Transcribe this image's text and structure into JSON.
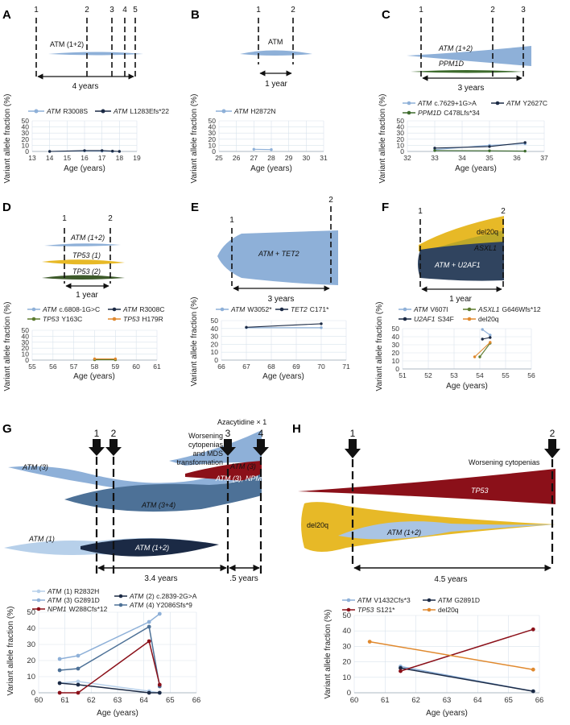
{
  "colors": {
    "atm": "#8eb0d8",
    "atm_dark": "#1b2a45",
    "atm_mid": "#4d7197",
    "atm_light": "#b7d0ea",
    "tp53": "#8b1019",
    "tp53_yellow": "#e7b927",
    "tp53_green": "#3d5a2a",
    "asxl1": "#bda829",
    "del20q": "#e0892e",
    "ppm1d": "#3d6b2c",
    "grid": "#d9e3ec"
  },
  "chart_data": [
    {
      "id": "A",
      "type": "line",
      "xlabel": "Age (years)",
      "ylabel": "Variant allele fraction (%)",
      "xlim": [
        13,
        19
      ],
      "ylim": [
        0,
        50
      ],
      "xticks": [
        "13",
        "14",
        "15",
        "16",
        "17",
        "18",
        "19"
      ],
      "yticks": [
        "0",
        "10",
        "20",
        "30",
        "40",
        "50"
      ],
      "series": [
        {
          "name": "ATM",
          "variant": "R3008S",
          "color": "#8eb0d8",
          "x": [
            14,
            16,
            17,
            17.6,
            18
          ],
          "y": [
            0,
            1,
            0.5,
            0,
            0
          ]
        },
        {
          "name": "ATM",
          "variant": "L1283Efs*22",
          "color": "#1b2a45",
          "x": [
            14,
            16,
            17,
            17.6,
            18
          ],
          "y": [
            0,
            1.5,
            1.5,
            0.5,
            0
          ]
        }
      ],
      "fishplot": {
        "label": "ATM (1+2)",
        "timepoints": [
          "1",
          "2",
          "3",
          "4",
          "5"
        ],
        "duration": "4 years"
      }
    },
    {
      "id": "B",
      "type": "line",
      "xlabel": "Age (years)",
      "ylabel": "Variant allele fraction (%)",
      "xlim": [
        25,
        31
      ],
      "ylim": [
        0,
        50
      ],
      "xticks": [
        "25",
        "26",
        "27",
        "28",
        "29",
        "30",
        "31"
      ],
      "yticks": [
        "0",
        "10",
        "20",
        "30",
        "40",
        "50"
      ],
      "series": [
        {
          "name": "ATM",
          "variant": "H2872N",
          "color": "#8eb0d8",
          "x": [
            27,
            28
          ],
          "y": [
            3.5,
            3
          ]
        }
      ],
      "fishplot": {
        "label": "ATM",
        "timepoints": [
          "1",
          "2"
        ],
        "duration": "1 year"
      }
    },
    {
      "id": "C",
      "type": "line",
      "xlabel": "Age (years)",
      "ylabel": "Variant allele fraction (%)",
      "xlim": [
        32,
        37
      ],
      "ylim": [
        0,
        50
      ],
      "xticks": [
        "32",
        "33",
        "34",
        "35",
        "36",
        "37"
      ],
      "yticks": [
        "0",
        "10",
        "20",
        "30",
        "40",
        "50"
      ],
      "series": [
        {
          "name": "ATM",
          "variant": "c.7629+1G>A",
          "color": "#8eb0d8",
          "x": [
            33,
            35,
            36.3
          ],
          "y": [
            3,
            10,
            12.5
          ]
        },
        {
          "name": "ATM",
          "variant": "Y2627C",
          "color": "#1b2a45",
          "x": [
            33,
            35,
            36.3
          ],
          "y": [
            5.5,
            8,
            14.5
          ]
        },
        {
          "name": "PPM1D",
          "variant": "C478Lfs*34",
          "color": "#3d6b2c",
          "x": [
            33,
            35,
            36.3
          ],
          "y": [
            1.5,
            1,
            0.5
          ]
        }
      ],
      "fishplot": {
        "labels": [
          "ATM (1+2)",
          "PPM1D"
        ],
        "timepoints": [
          "1",
          "2",
          "3"
        ],
        "duration": "3 years"
      }
    },
    {
      "id": "D",
      "type": "line",
      "xlabel": "Age (years)",
      "ylabel": "Variant allele fraction (%)",
      "xlim": [
        55,
        61
      ],
      "ylim": [
        0,
        50
      ],
      "xticks": [
        "55",
        "56",
        "57",
        "58",
        "59",
        "60",
        "61"
      ],
      "yticks": [
        "0",
        "10",
        "20",
        "30",
        "40",
        "50"
      ],
      "series": [
        {
          "name": "ATM",
          "variant": "c.6808-1G>C",
          "color": "#8eb0d8",
          "x": [
            58,
            59
          ],
          "y": [
            1.5,
            1.5
          ]
        },
        {
          "name": "ATM",
          "variant": "R3008C",
          "color": "#1b2a45",
          "x": [
            58,
            59
          ],
          "y": [
            1,
            1
          ]
        },
        {
          "name": "TP53",
          "variant": "Y163C",
          "color": "#5c7a2e",
          "x": [
            58,
            59
          ],
          "y": [
            0.5,
            0.5
          ]
        },
        {
          "name": "TP53",
          "variant": "H179R",
          "color": "#e0892e",
          "x": [
            58,
            59
          ],
          "y": [
            2,
            2
          ]
        }
      ],
      "fishplot": {
        "labels": [
          "ATM (1+2)",
          "TP53 (1)",
          "TP53 (2)"
        ],
        "timepoints": [
          "1",
          "2"
        ],
        "duration": "1 year"
      }
    },
    {
      "id": "E",
      "type": "line",
      "xlabel": "Age (years)",
      "ylabel": "Variant allele fraction (%)",
      "xlim": [
        66,
        71
      ],
      "ylim": [
        0,
        50
      ],
      "xticks": [
        "66",
        "67",
        "68",
        "69",
        "70",
        "71"
      ],
      "yticks": [
        "0",
        "10",
        "20",
        "30",
        "40",
        "50"
      ],
      "series": [
        {
          "name": "ATM",
          "variant": "W3052*",
          "color": "#8eb0d8",
          "x": [
            67,
            70
          ],
          "y": [
            41,
            41
          ]
        },
        {
          "name": "TET2",
          "variant": "C171*",
          "color": "#1b2a45",
          "x": [
            67,
            70
          ],
          "y": [
            41.5,
            46
          ]
        }
      ],
      "fishplot": {
        "label": "ATM + TET2",
        "timepoints": [
          "1",
          "2"
        ],
        "duration": "3 years"
      }
    },
    {
      "id": "F",
      "type": "line",
      "xlabel": "Age (years)",
      "ylabel": "Variant allele fraction (%)",
      "xlim": [
        51,
        56
      ],
      "ylim": [
        0,
        50
      ],
      "xticks": [
        "51",
        "52",
        "53",
        "54",
        "55",
        "56"
      ],
      "yticks": [
        "0",
        "10",
        "20",
        "30",
        "40",
        "50"
      ],
      "series": [
        {
          "name": "ATM",
          "variant": "V607I",
          "color": "#8eb0d8",
          "x": [
            54.1,
            54.4
          ],
          "y": [
            49,
            42
          ]
        },
        {
          "name": "ASXL1",
          "variant": "G646Wfs*12",
          "color": "#5c7a2e",
          "x": [
            54,
            54.4
          ],
          "y": [
            15,
            32
          ]
        },
        {
          "name": "U2AF1",
          "variant": "S34F",
          "color": "#1b2a45",
          "x": [
            54.1,
            54.4
          ],
          "y": [
            37,
            39
          ]
        },
        {
          "name": "",
          "variant": "del20q",
          "color": "#e0892e",
          "x": [
            53.8,
            54.4
          ],
          "y": [
            15,
            33
          ]
        }
      ],
      "fishplot": {
        "labels": [
          "del20q",
          "ASXL1",
          "ATM + U2AF1"
        ],
        "timepoints": [
          "1",
          "2"
        ],
        "duration": "1 year"
      }
    },
    {
      "id": "G",
      "type": "line",
      "xlabel": "Age (years)",
      "ylabel": "Variant allele fraction (%)",
      "xlim": [
        60,
        66
      ],
      "ylim": [
        0,
        50
      ],
      "xticks": [
        "60",
        "61",
        "62",
        "63",
        "64",
        "65",
        "66"
      ],
      "yticks": [
        "0",
        "10",
        "20",
        "30",
        "40",
        "50"
      ],
      "series": [
        {
          "name": "ATM",
          "variant": "(1) R2832H",
          "color": "#b7d0ea",
          "x": [
            60.8,
            61.5,
            64.2,
            64.6
          ],
          "y": [
            6,
            7,
            1,
            0
          ]
        },
        {
          "name": "ATM",
          "variant": "(2) c.2839-2G>A",
          "color": "#1b2a45",
          "x": [
            60.8,
            61.5,
            64.2,
            64.6
          ],
          "y": [
            6,
            5,
            0,
            0
          ]
        },
        {
          "name": "ATM",
          "variant": "(3) G2891D",
          "color": "#8eb0d8",
          "x": [
            60.8,
            61.5,
            64.2,
            64.6
          ],
          "y": [
            21,
            23,
            44,
            49
          ]
        },
        {
          "name": "ATM",
          "variant": "(4) Y2086Sfs*9",
          "color": "#4d7197",
          "x": [
            60.8,
            61.5,
            64.2,
            64.6
          ],
          "y": [
            14,
            15,
            41,
            4
          ]
        },
        {
          "name": "NPM1",
          "variant": "W288Cfs*12",
          "color": "#8b1019",
          "x": [
            60.8,
            61.5,
            64.2,
            64.6
          ],
          "y": [
            0,
            0,
            32,
            5
          ]
        }
      ],
      "fishplot": {
        "labels": [
          "ATM (3)",
          "ATM (3+4)",
          "ATM (1)",
          "ATM (1+2)",
          "ATM (3), NPM1"
        ],
        "timepoints": [
          "1",
          "2",
          "3",
          "4"
        ],
        "annotation1": "Worsening",
        "annotation2": "cytopenias",
        "annotation3": "and MDS",
        "annotation4": "transformation",
        "treatment": "Azacytidine × 1",
        "duration1": "3.4 years",
        "duration2": ".5 years"
      }
    },
    {
      "id": "H",
      "type": "line",
      "xlabel": "Age (years)",
      "ylabel": "Variant allele fraction (%)",
      "xlim": [
        60,
        66
      ],
      "ylim": [
        0,
        50
      ],
      "xticks": [
        "60",
        "61",
        "62",
        "63",
        "64",
        "65",
        "66"
      ],
      "yticks": [
        "0",
        "10",
        "20",
        "30",
        "40",
        "50"
      ],
      "series": [
        {
          "name": "ATM",
          "variant": "V1432Cfs*3",
          "color": "#8eb0d8",
          "x": [
            61.5,
            65.8
          ],
          "y": [
            17,
            1
          ]
        },
        {
          "name": "ATM",
          "variant": "G2891D",
          "color": "#1b2a45",
          "x": [
            61.5,
            65.8
          ],
          "y": [
            16,
            1
          ]
        },
        {
          "name": "TP53",
          "variant": "S121*",
          "color": "#8b1019",
          "x": [
            61.5,
            65.8
          ],
          "y": [
            14,
            41
          ]
        },
        {
          "name": "",
          "variant": "del20q",
          "color": "#e0892e",
          "x": [
            60.5,
            65.8
          ],
          "y": [
            33,
            15
          ]
        }
      ],
      "fishplot": {
        "labels": [
          "TP53",
          "del20q",
          "ATM (1+2)"
        ],
        "timepoints": [
          "1",
          "2"
        ],
        "annotation": "Worsening cytopenias",
        "duration": "4.5 years"
      }
    }
  ]
}
